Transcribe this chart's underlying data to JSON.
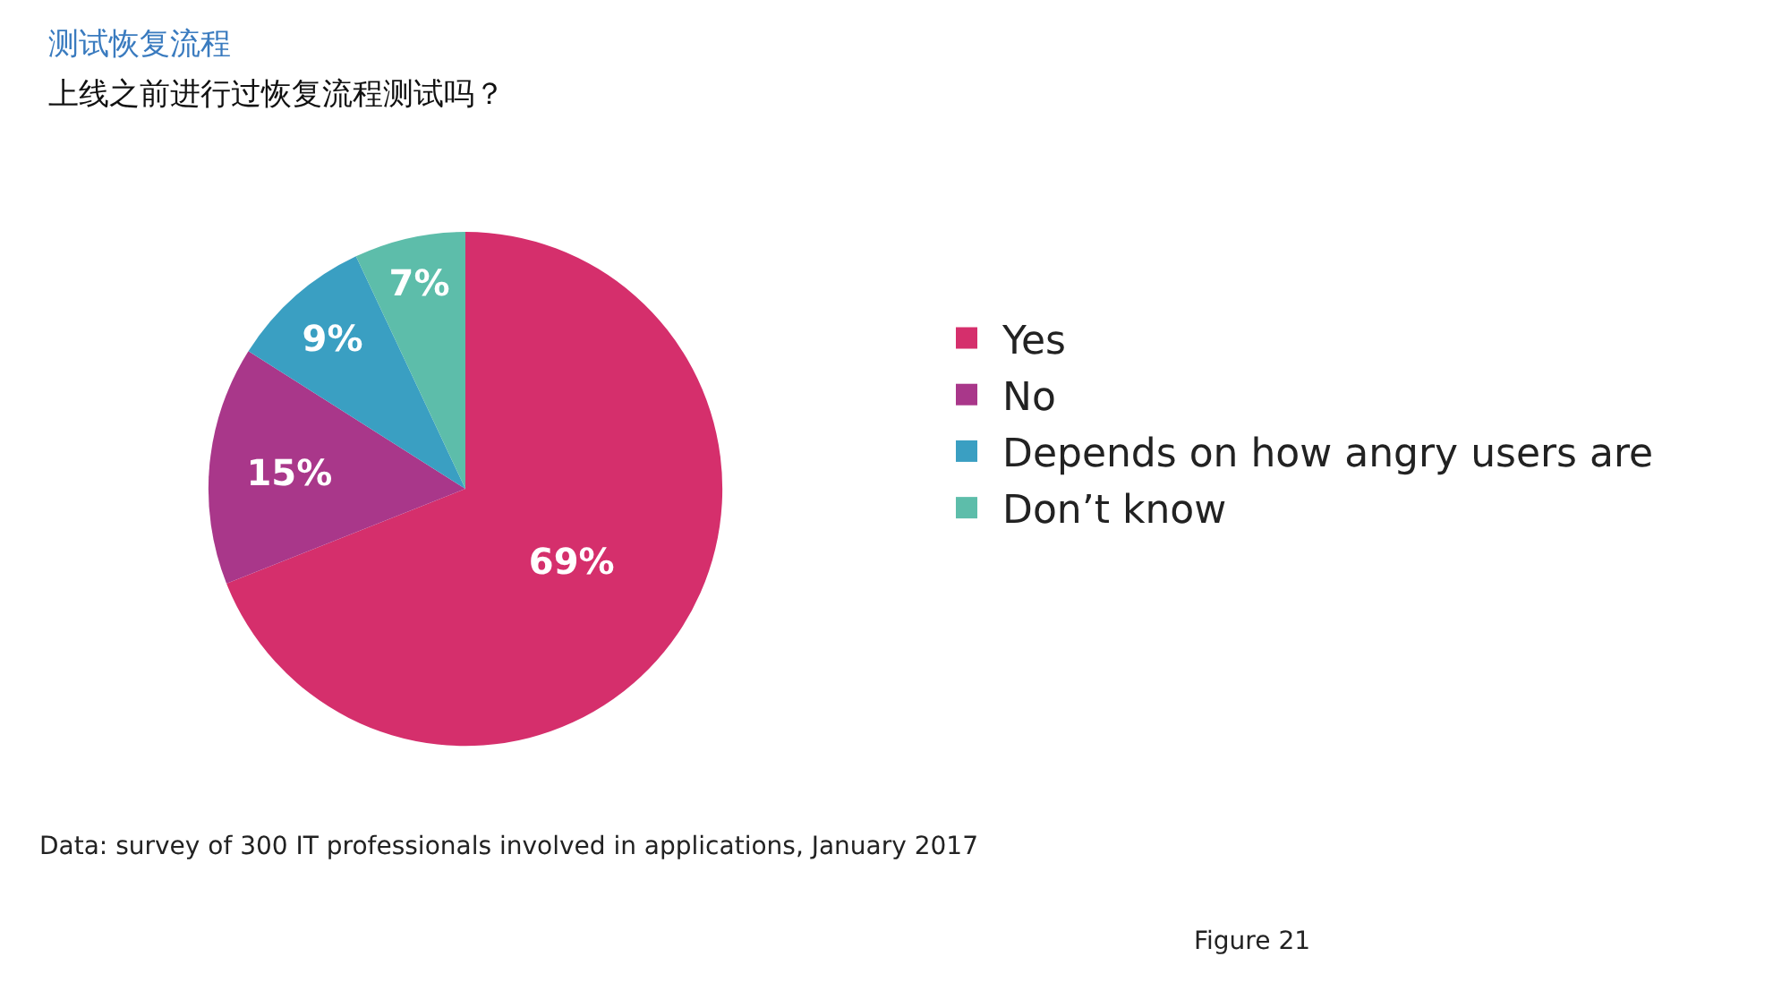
{
  "chart_data": {
    "type": "pie",
    "title": "测试恢复流程",
    "subtitle": "上线之前进行过恢复流程测试吗？",
    "categories": [
      "Yes",
      "No",
      "Depends on how angry users are",
      "Don’t know"
    ],
    "values": [
      69,
      15,
      9,
      7
    ],
    "colors": [
      "#d52f6c",
      "#a9378a",
      "#3a9fc2",
      "#5dbdaa"
    ],
    "value_labels": [
      "69%",
      "15%",
      "9%",
      "7%"
    ],
    "legend": "right",
    "annotations": [
      "Data: survey of 300 IT professionals involved in applications, January 2017",
      "Figure 21"
    ]
  }
}
